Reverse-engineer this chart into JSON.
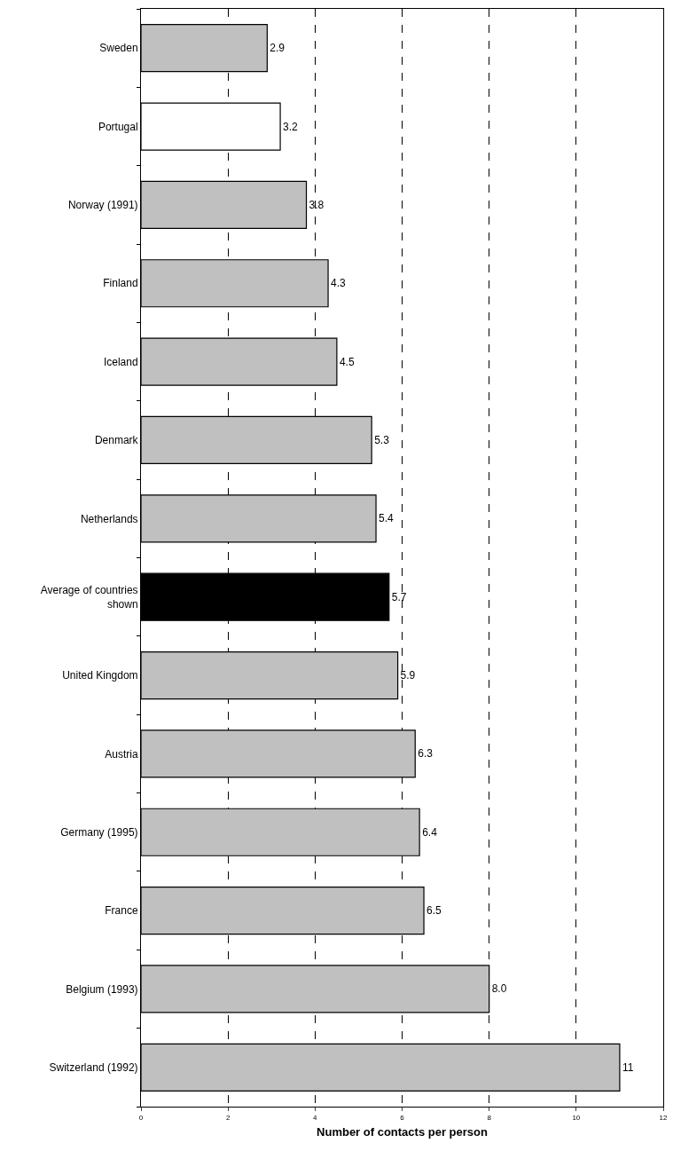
{
  "chart_data": {
    "type": "bar",
    "orientation": "horizontal",
    "xlabel": "Number of contacts per person",
    "categories": [
      "Sweden",
      "Portugal",
      "Norway (1991)",
      "Finland",
      "Iceland",
      "Denmark",
      "Netherlands",
      "Average of countries shown",
      "United Kingdom",
      "Austria",
      "Germany (1995)",
      "France",
      "Belgium (1993)",
      "Switzerland (1992)"
    ],
    "values": [
      2.9,
      3.2,
      3.8,
      4.3,
      4.5,
      5.3,
      5.4,
      5.7,
      5.9,
      6.3,
      6.4,
      6.5,
      8.0,
      11
    ],
    "value_labels": [
      "2.9",
      "3.2",
      "3.8",
      "4.3",
      "4.5",
      "5.3",
      "5.4",
      "5.7",
      "5.9",
      "6.3",
      "6.4",
      "6.5",
      "8.0",
      "11"
    ],
    "colors": [
      "#c0c0c0",
      "#ffffff",
      "#c0c0c0",
      "#c0c0c0",
      "#c0c0c0",
      "#c0c0c0",
      "#c0c0c0",
      "#000000",
      "#c0c0c0",
      "#c0c0c0",
      "#c0c0c0",
      "#c0c0c0",
      "#c0c0c0",
      "#c0c0c0"
    ],
    "xlim": [
      0,
      12
    ],
    "xticks": [
      0,
      2,
      4,
      6,
      8,
      10,
      12
    ],
    "grid": "x",
    "line_style": "dashed",
    "legend": false
  }
}
